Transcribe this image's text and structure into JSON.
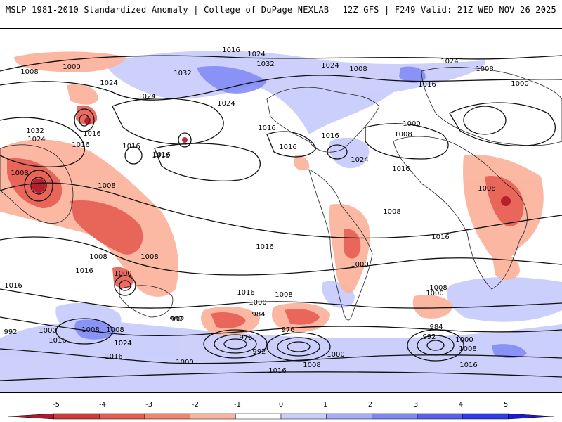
{
  "header": {
    "left_title": "MSLP 1981-2010 Standardized Anomaly | College of DuPage NEXLAB",
    "right_title": "12Z GFS | F249 Valid: 21Z WED NOV 26 2025"
  },
  "contour_labels": [
    "1016",
    "1024",
    "1008",
    "1000",
    "1032",
    "1024",
    "1008",
    "1008",
    "1000",
    "1024",
    "1024",
    "1024",
    "1032",
    "1024",
    "1016",
    "1016",
    "1016",
    "1016",
    "1016",
    "1000",
    "1008",
    "1032",
    "1024",
    "1016",
    "1016",
    "1016",
    "1016",
    "1024",
    "1016",
    "1008",
    "1008",
    "1008",
    "1008",
    "1008",
    "1000",
    "1016",
    "1008",
    "1000",
    "1016",
    "1016",
    "1008",
    "1008",
    "1000",
    "1016",
    "1008",
    "1000",
    "1016",
    "992",
    "984",
    "976",
    "992",
    "992",
    "1000",
    "1008",
    "1024",
    "984",
    "992",
    "1008",
    "1000",
    "1000",
    "976",
    "1016",
    "1000",
    "1008",
    "1016",
    "1016",
    "1016",
    "992",
    "1024"
  ],
  "colorbar": {
    "ticks": [
      "-5",
      "-4",
      "-3",
      "-2",
      "-1",
      "0",
      "1",
      "2",
      "3",
      "4",
      "5"
    ],
    "colors": [
      "#b2182b",
      "#cf3a3a",
      "#e55d52",
      "#f3826f",
      "#fbb49e",
      "#ffffff",
      "#c9cdfb",
      "#a5acf9",
      "#7e87f3",
      "#5561ee",
      "#2b3ce8",
      "#1a1ad6"
    ]
  }
}
